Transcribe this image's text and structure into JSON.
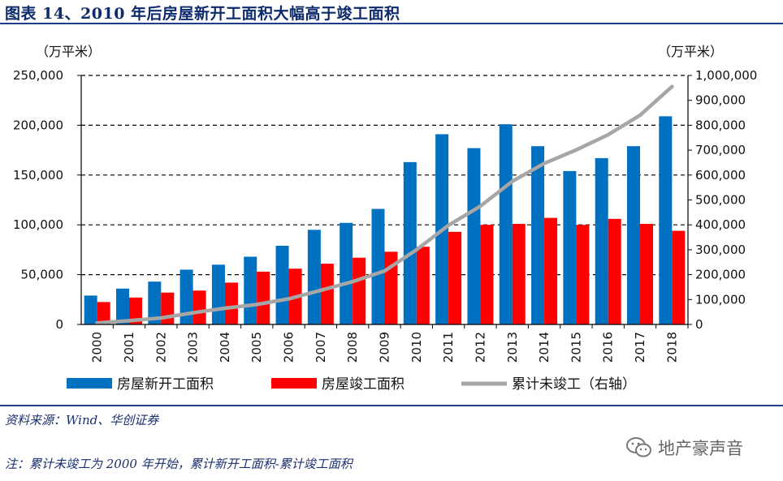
{
  "title": "图表 14、2010 年后房屋新开工面积大幅高于竣工面积",
  "source": "资料来源：Wind、华创证券",
  "note": "注：累计未竣工为 2000 年开始，累计新开工面积-累计竣工面积",
  "watermark": "地产豪声音",
  "watermark_icon": "wechat-icon",
  "colors": {
    "new_start": "#0070c0",
    "completed": "#ff0000",
    "cumulative": "#a6a6a6",
    "header": "#1f3f8c"
  },
  "chart_data": {
    "type": "bar",
    "title": "",
    "xlabel": "",
    "ylabel": "（万平米）",
    "ylabel_right": "（万平米）",
    "categories": [
      "2000",
      "2001",
      "2002",
      "2003",
      "2004",
      "2005",
      "2006",
      "2007",
      "2008",
      "2009",
      "2010",
      "2011",
      "2012",
      "2013",
      "2014",
      "2015",
      "2016",
      "2017",
      "2018"
    ],
    "ylim": [
      0,
      250000
    ],
    "ylim_right": [
      0,
      1000000
    ],
    "y_ticks": [
      "250,000",
      "200,000",
      "150,000",
      "100,000",
      "50,000",
      "0"
    ],
    "y_ticks_right": [
      "1,000,000",
      "900,000",
      "800,000",
      "700,000",
      "600,000",
      "500,000",
      "400,000",
      "300,000",
      "200,000",
      "100,000",
      "0"
    ],
    "series": [
      {
        "name": "房屋新开工面积",
        "axis": "left",
        "kind": "bar",
        "values": [
          29000,
          36000,
          43000,
          55000,
          60000,
          68000,
          79000,
          95000,
          102000,
          116000,
          163000,
          191000,
          177000,
          201000,
          179000,
          154000,
          167000,
          179000,
          209000
        ]
      },
      {
        "name": "房屋竣工面积",
        "axis": "left",
        "kind": "bar",
        "values": [
          22500,
          27000,
          32000,
          34000,
          42000,
          53000,
          56000,
          61000,
          67000,
          73000,
          78000,
          93000,
          100000,
          101000,
          107000,
          100000,
          106000,
          101000,
          94000
        ]
      },
      {
        "name": "累计未竣工（右轴）",
        "axis": "right",
        "kind": "line",
        "values": [
          6000,
          15000,
          26000,
          47000,
          65000,
          80000,
          103000,
          137000,
          172000,
          215000,
          300000,
          398000,
          475000,
          575000,
          647000,
          701000,
          762000,
          840000,
          955000
        ]
      }
    ]
  }
}
